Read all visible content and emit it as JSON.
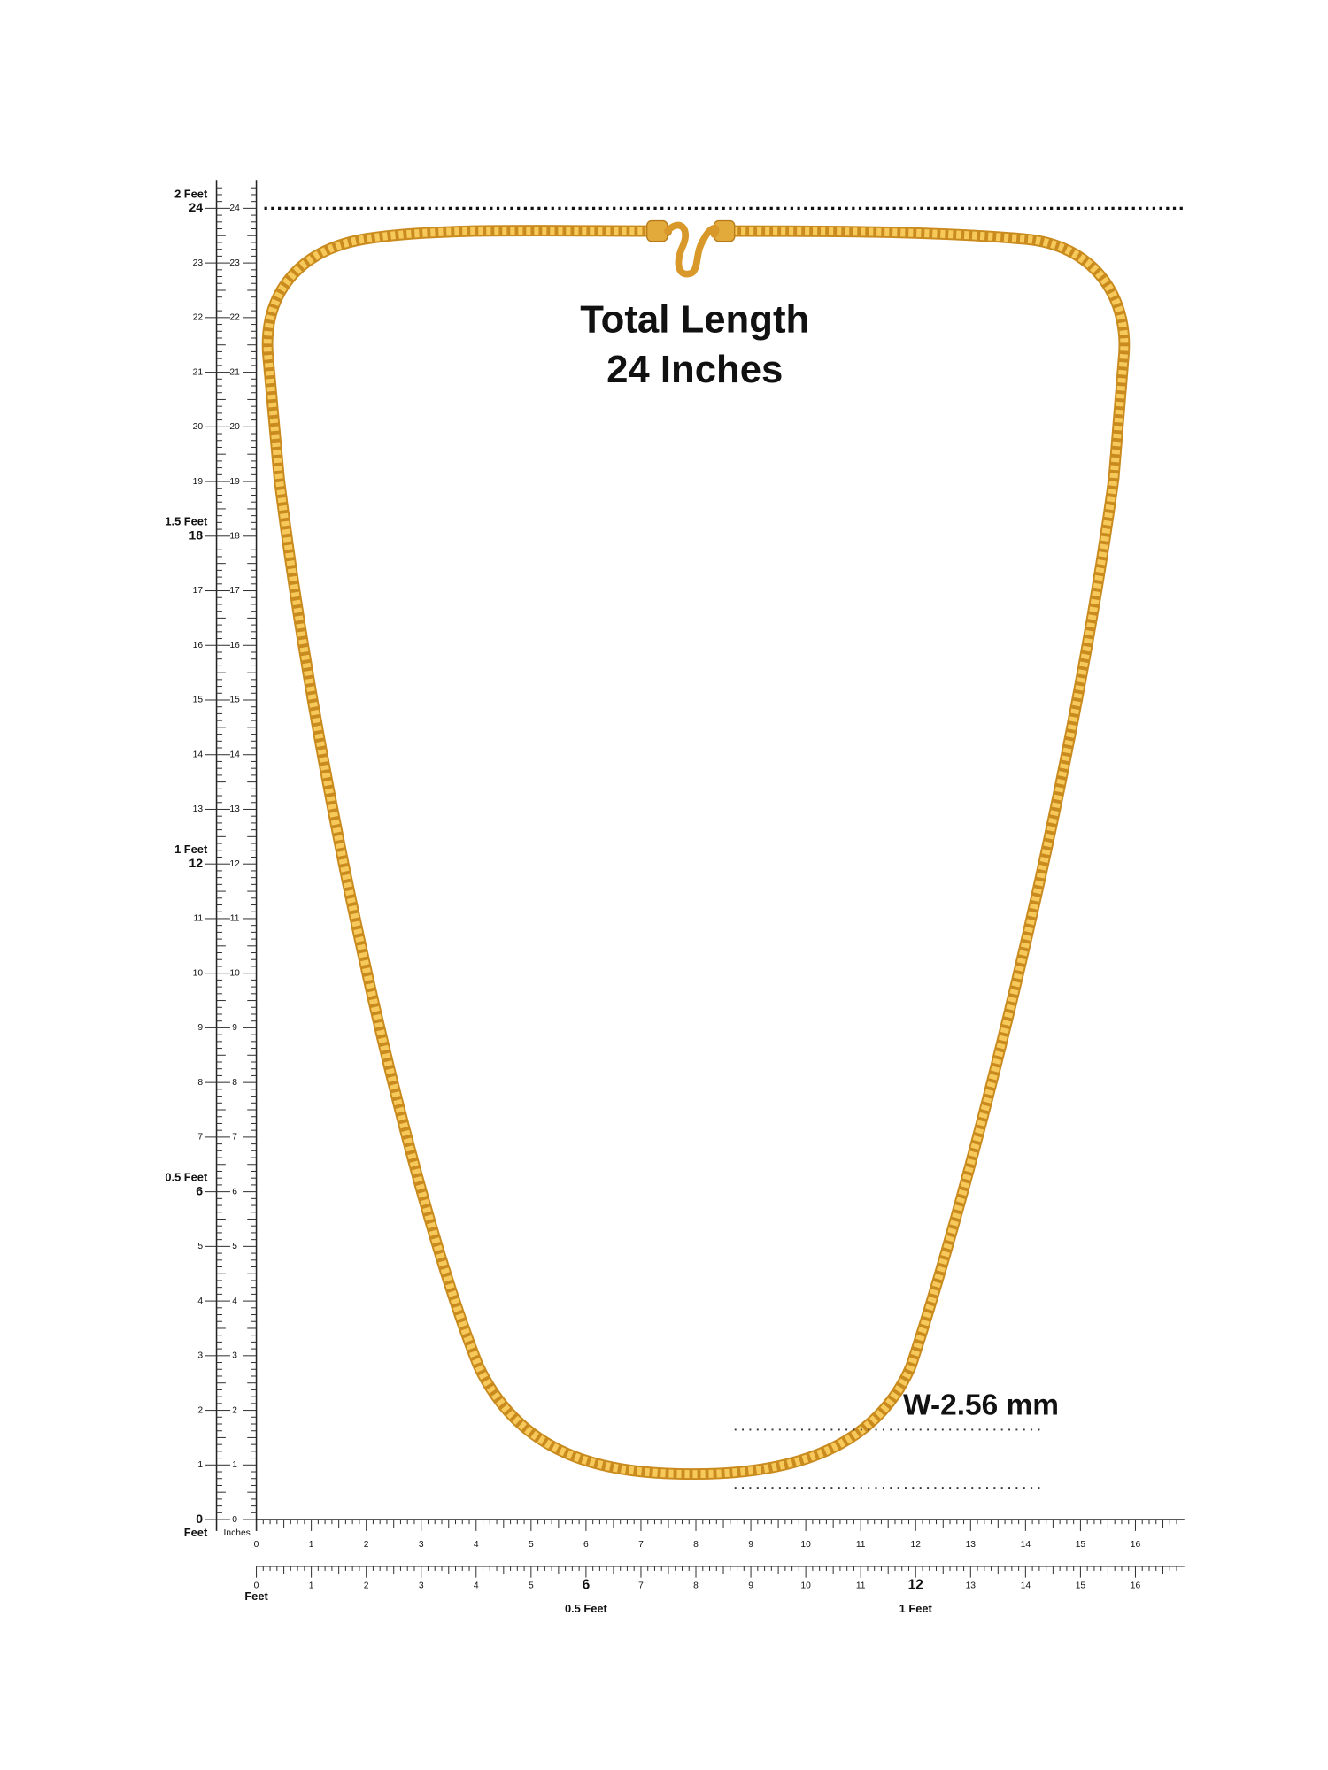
{
  "title": [
    "Total Length",
    "24 Inches"
  ],
  "width_label": "W-2.56 mm",
  "left_ruler": {
    "outer_labels": [
      "0",
      "1",
      "2",
      "3",
      "4",
      "5",
      "6",
      "7",
      "8",
      "9",
      "10",
      "11",
      "12",
      "13",
      "14",
      "15",
      "16",
      "17",
      "18",
      "19",
      "20",
      "21",
      "22",
      "23",
      "24"
    ],
    "inner_labels": [
      "0",
      "1",
      "2",
      "3",
      "4",
      "5",
      "6",
      "7",
      "8",
      "9",
      "10",
      "11",
      "12",
      "13",
      "14",
      "15",
      "16",
      "17",
      "18",
      "19",
      "20",
      "21",
      "22",
      "23",
      "24"
    ],
    "feet_labels": [
      "0.5 Feet",
      "1 Feet",
      "1.5 Feet",
      "2 Feet"
    ],
    "outer_unit": "Feet",
    "inner_unit": "Inches"
  },
  "bottom_ruler": {
    "inch_labels": [
      "0",
      "1",
      "2",
      "3",
      "4",
      "5",
      "6",
      "7",
      "8",
      "9",
      "10",
      "11",
      "12",
      "13",
      "14",
      "15",
      "16"
    ],
    "lower_labels": [
      "0",
      "1",
      "2",
      "3",
      "4",
      "5",
      "6",
      "7",
      "8",
      "9",
      "10",
      "11",
      "12",
      "13",
      "14",
      "15",
      "16"
    ],
    "lower_unit": "Feet",
    "feet_labels": [
      "0.5 Feet",
      "1 Feet"
    ]
  }
}
